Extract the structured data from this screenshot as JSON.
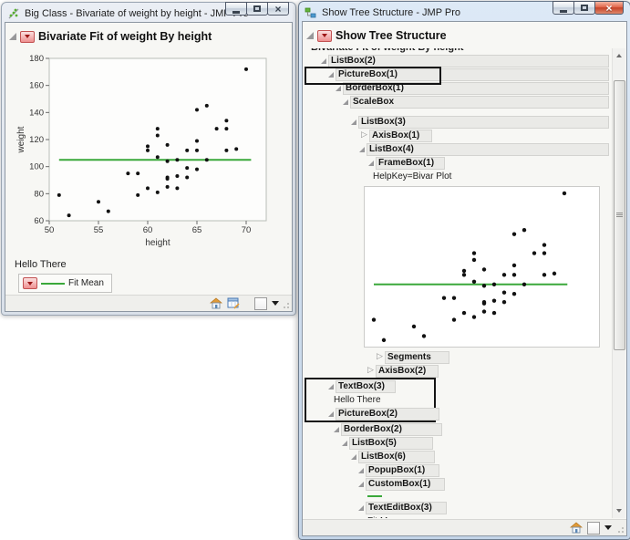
{
  "left_window": {
    "title": "Big Class - Bivariate of weight by height - JMP Pro",
    "header": "Bivariate Fit of weight By height",
    "hello_text": "Hello There",
    "legend_label": "Fit Mean",
    "fit_mean_label": "Fit Mean"
  },
  "right_window": {
    "title": "Show Tree Structure - JMP Pro",
    "header": "Show Tree Structure",
    "clipped_text": "Bivariate Fit of weight By height",
    "tree_top": [
      {
        "label": "ListBox(2)",
        "state": "expanded",
        "bar": "full",
        "indent": 19
      },
      {
        "label": "PictureBox(1)",
        "state": "expanded",
        "bar": "full",
        "indent": 27,
        "outlined": true
      },
      {
        "label": "BorderBox(1)",
        "state": "expanded",
        "bar": "full",
        "indent": 35
      },
      {
        "label": "ScaleBox",
        "state": "expanded",
        "bar": "full",
        "indent": 43
      },
      {
        "type": "gap"
      },
      {
        "label": "ListBox(3)",
        "state": "expanded",
        "bar": "full",
        "indent": 52
      },
      {
        "label": "AxisBox(1)",
        "state": "collapsed",
        "bar": "fit",
        "indent": 63,
        "bar_extra": 8
      },
      {
        "label": "ListBox(4)",
        "state": "expanded",
        "bar": "full",
        "indent": 61
      },
      {
        "label": "FrameBox(1)",
        "state": "expanded",
        "bar": "fit",
        "indent": 71,
        "bar_extra": 6
      },
      {
        "label": "HelpKey=Bivar Plot",
        "state": "text",
        "indent": 76
      }
    ],
    "tree_after_plot": [
      {
        "label": "Segments",
        "state": "collapsed",
        "bar": "fit",
        "indent": 80,
        "bar_extra": 14
      },
      {
        "label": "AxisBox(2)",
        "state": "collapsed",
        "bar": "fit",
        "indent": 70,
        "bar_extra": 8
      }
    ],
    "tree_outlined": [
      {
        "label": "TextBox(3)",
        "state": "expanded",
        "bar": "fit",
        "indent": 24,
        "bar_extra": 6
      },
      {
        "label": "Hello There",
        "state": "text",
        "indent": 30
      },
      {
        "label": "PictureBox(2)",
        "state": "expanded",
        "bar": "fit",
        "indent": 24,
        "bar_extra": 40
      }
    ],
    "tree_bottom": [
      {
        "label": "BorderBox(2)",
        "state": "expanded",
        "bar": "fit",
        "indent": 33,
        "bar_extra": 38
      },
      {
        "label": "ListBox(5)",
        "state": "expanded",
        "bar": "fit",
        "indent": 42,
        "bar_extra": 34
      },
      {
        "label": "ListBox(6)",
        "state": "expanded",
        "bar": "fit",
        "indent": 52,
        "bar_extra": 26
      },
      {
        "label": "PopupBox(1)",
        "state": "expanded",
        "bar": "fit",
        "indent": 60,
        "bar_extra": 10
      },
      {
        "label": "CustomBox(1)",
        "state": "expanded",
        "bar": "fit",
        "indent": 60,
        "bar_extra": 10
      },
      {
        "type": "green-line",
        "indent": 70
      },
      {
        "label": "TextEditBox(3)",
        "state": "expanded",
        "bar": "fit",
        "indent": 60,
        "bar_extra": 10
      },
      {
        "label": "Fit Mean",
        "state": "text",
        "indent": 70
      }
    ]
  },
  "chart_data": {
    "type": "scatter",
    "title": "Bivariate Fit of weight By height",
    "xlabel": "height",
    "ylabel": "weight",
    "xlim": [
      50,
      70
    ],
    "ylim": [
      60,
      180
    ],
    "xticks": [
      50,
      55,
      60,
      65,
      70
    ],
    "yticks": [
      60,
      80,
      100,
      120,
      140,
      160,
      180
    ],
    "grid": false,
    "point_color": "#111111",
    "mean_line": 105,
    "mean_line_color": "#3aa83a",
    "mean_line_label": "Fit Mean",
    "points": [
      [
        51,
        79
      ],
      [
        52,
        64
      ],
      [
        55,
        74
      ],
      [
        56,
        67
      ],
      [
        58,
        95
      ],
      [
        59,
        79
      ],
      [
        59,
        95
      ],
      [
        60,
        84
      ],
      [
        60,
        112
      ],
      [
        60,
        115
      ],
      [
        61,
        81
      ],
      [
        61,
        107
      ],
      [
        61,
        123
      ],
      [
        61,
        128
      ],
      [
        62,
        85
      ],
      [
        62,
        91
      ],
      [
        62,
        92
      ],
      [
        62,
        104
      ],
      [
        62,
        116
      ],
      [
        63,
        84
      ],
      [
        63,
        93
      ],
      [
        63,
        105
      ],
      [
        64,
        92
      ],
      [
        64,
        99
      ],
      [
        64,
        112
      ],
      [
        65,
        98
      ],
      [
        65,
        112
      ],
      [
        65,
        119
      ],
      [
        65,
        142
      ],
      [
        66,
        105
      ],
      [
        66,
        145
      ],
      [
        67,
        128
      ],
      [
        68,
        112
      ],
      [
        68,
        128
      ],
      [
        68,
        134
      ],
      [
        69,
        113
      ],
      [
        70,
        172
      ]
    ]
  }
}
